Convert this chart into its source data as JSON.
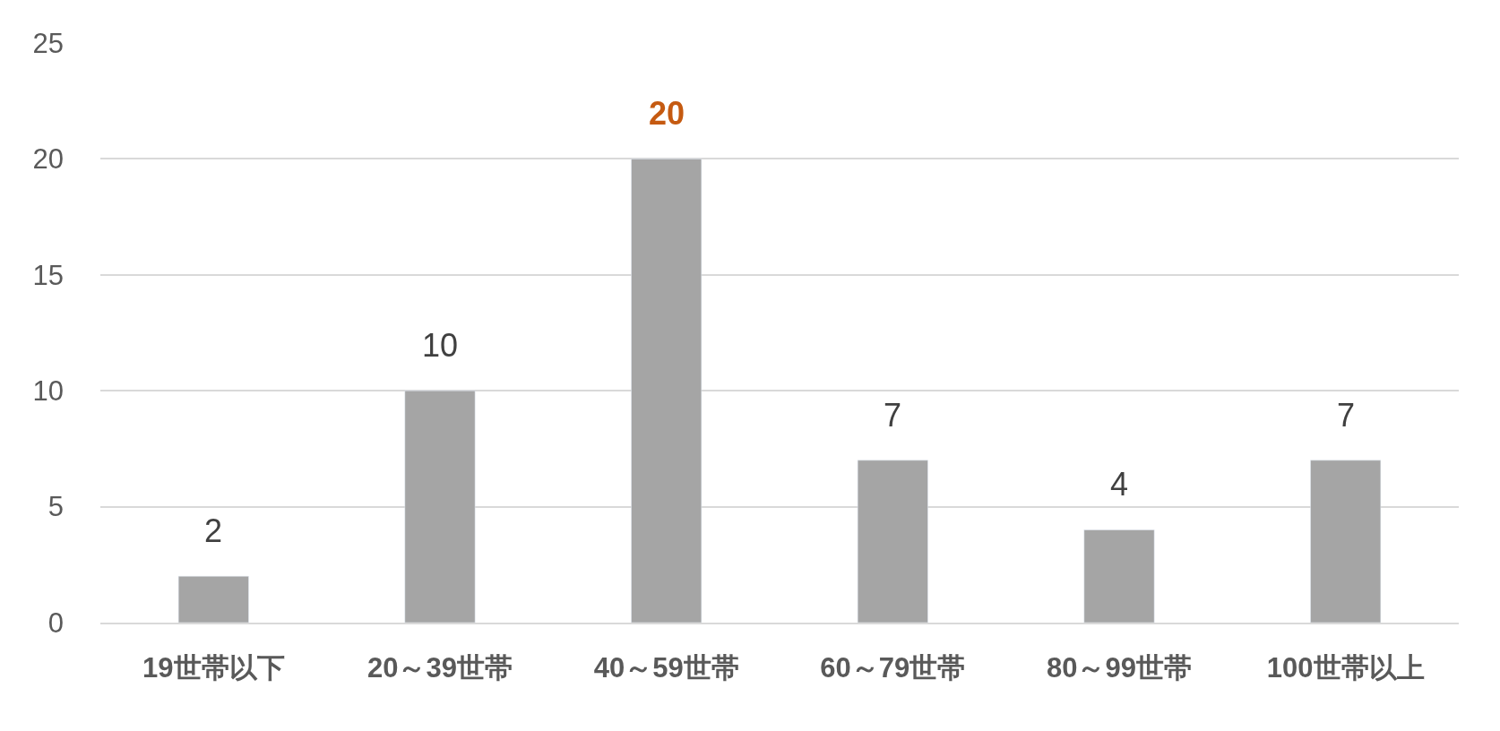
{
  "chart_data": {
    "type": "bar",
    "categories": [
      "19世帯以下",
      "20～39世帯",
      "40～59世帯",
      "60～79世帯",
      "80～99世帯",
      "100世帯以上"
    ],
    "values": [
      2,
      10,
      20,
      7,
      4,
      7
    ],
    "value_labels": [
      "2",
      "10",
      null,
      "7",
      "4",
      "7"
    ],
    "color": "#a5a5a5",
    "annotations": [
      {
        "text": "20",
        "x": "40～59世帯",
        "y": 20
      }
    ],
    "ylim": [
      0,
      25
    ],
    "yticks": [
      0,
      5,
      10,
      15,
      20,
      25
    ],
    "grid": "y"
  }
}
